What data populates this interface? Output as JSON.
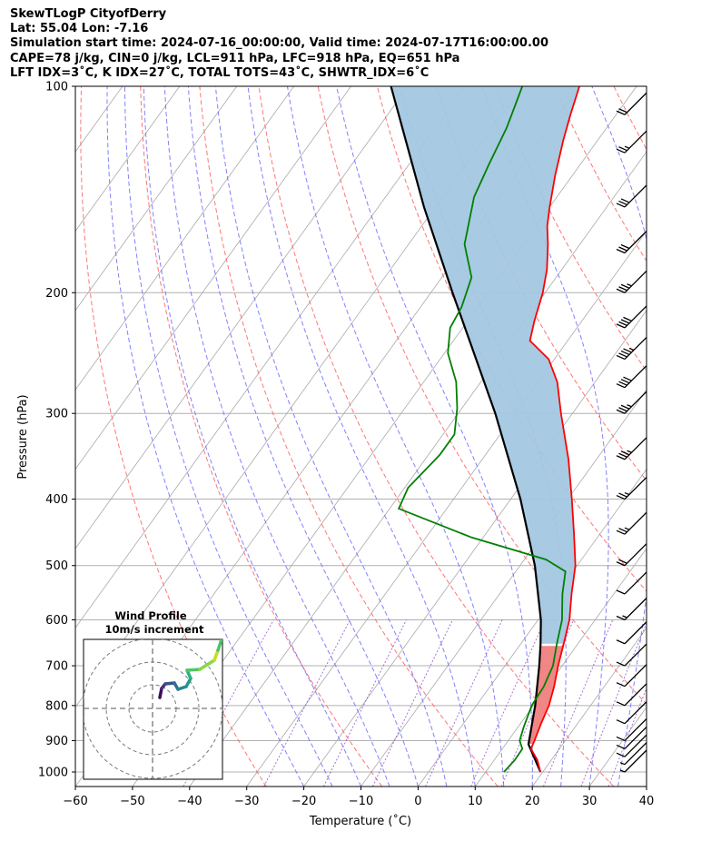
{
  "header": {
    "line1": "SkewTLogP CityofDerry",
    "line2": "Lat: 55.04   Lon: -7.16",
    "line3": "Simulation start time: 2024-07-16_00:00:00, Valid time: 2024-07-17T16:00:00.00",
    "line4": "CAPE=78 j/kg, CIN=0 j/kg, LCL=911 hPa, LFC=918 hPa, EQ=651 hPa",
    "line5": "LFT IDX=3˚C, K IDX=27˚C, TOTAL TOTS=43˚C, SHWTR_IDX=6˚C"
  },
  "chart_data": {
    "type": "line",
    "subtype": "skew-t log-p sounding",
    "xlabel": "Temperature (˚C)",
    "ylabel": "Pressure (hPa)",
    "x_ticks": [
      "−60",
      "−50",
      "−40",
      "−30",
      "−20",
      "−10",
      "0",
      "10",
      "20",
      "30",
      "40"
    ],
    "y_ticks": [
      "100",
      "200",
      "300",
      "400",
      "500",
      "600",
      "700",
      "800",
      "900",
      "1000"
    ],
    "xlim": [
      -60,
      40
    ],
    "ylim": [
      1050,
      100
    ],
    "y_scale": "log",
    "skewed_isotherms": true,
    "colors": {
      "temperature": "#ff0000",
      "dewpoint": "#008000",
      "parcel": "#000000",
      "cape_fill": "#a3c7e0",
      "cin_fill": "#f08080",
      "dry_adiabats": "#ff6666",
      "moist_adiabats": "#6b6bff",
      "mixing_ratio": "#8b3fc6",
      "isotherms": "#a9a9a9"
    },
    "series": [
      {
        "key": "temperature",
        "points": [
          [
            1000,
            19.6
          ],
          [
            960,
            17.5
          ],
          [
            925,
            15.0
          ],
          [
            900,
            14.6
          ],
          [
            850,
            13.6
          ],
          [
            800,
            12.7
          ],
          [
            750,
            11.2
          ],
          [
            700,
            9.3
          ],
          [
            650,
            7.5
          ],
          [
            600,
            5.5
          ],
          [
            550,
            2.6
          ],
          [
            500,
            -0.3
          ],
          [
            450,
            -4.5
          ],
          [
            400,
            -9.3
          ],
          [
            350,
            -14.9
          ],
          [
            300,
            -22.0
          ],
          [
            270,
            -26.6
          ],
          [
            250,
            -31.0
          ],
          [
            235,
            -36.6
          ],
          [
            220,
            -38.3
          ],
          [
            200,
            -40.4
          ],
          [
            185,
            -42.6
          ],
          [
            170,
            -45.6
          ],
          [
            160,
            -48.0
          ],
          [
            150,
            -50.0
          ],
          [
            135,
            -53.0
          ],
          [
            120,
            -56.0
          ],
          [
            110,
            -58.0
          ],
          [
            100,
            -60.0
          ]
        ]
      },
      {
        "key": "dewpoint",
        "points": [
          [
            1000,
            13.2
          ],
          [
            960,
            13.6
          ],
          [
            925,
            13.5
          ],
          [
            900,
            12.0
          ],
          [
            860,
            11.0
          ],
          [
            800,
            9.7
          ],
          [
            750,
            9.4
          ],
          [
            700,
            8.4
          ],
          [
            650,
            6.3
          ],
          [
            600,
            4.2
          ],
          [
            550,
            1.0
          ],
          [
            510,
            -1.3
          ],
          [
            490,
            -6.2
          ],
          [
            455,
            -22.0
          ],
          [
            413,
            -38.4
          ],
          [
            385,
            -39.4
          ],
          [
            345,
            -38.0
          ],
          [
            322,
            -38.0
          ],
          [
            295,
            -40.8
          ],
          [
            270,
            -44.3
          ],
          [
            245,
            -49.4
          ],
          [
            225,
            -52.2
          ],
          [
            210,
            -52.8
          ],
          [
            190,
            -54.8
          ],
          [
            170,
            -60.2
          ],
          [
            145,
            -64.5
          ],
          [
            130,
            -66.0
          ],
          [
            115,
            -67.5
          ],
          [
            100,
            -70.0
          ]
        ]
      },
      {
        "key": "parcel",
        "points": [
          [
            1000,
            19.6
          ],
          [
            911,
            14.0
          ],
          [
            800,
            10.3
          ],
          [
            700,
            6.0
          ],
          [
            651,
            3.5
          ],
          [
            600,
            0.5
          ],
          [
            500,
            -7.4
          ],
          [
            400,
            -18.3
          ],
          [
            300,
            -33.5
          ],
          [
            250,
            -43.7
          ],
          [
            200,
            -56.2
          ],
          [
            150,
            -72.0
          ],
          [
            100,
            -93.0
          ]
        ]
      }
    ],
    "wind_barbs": [
      {
        "p": 1000,
        "speed": 5
      },
      {
        "p": 975,
        "speed": 5
      },
      {
        "p": 950,
        "speed": 10
      },
      {
        "p": 925,
        "speed": 10
      },
      {
        "p": 900,
        "speed": 10
      },
      {
        "p": 850,
        "speed": 10
      },
      {
        "p": 800,
        "speed": 10
      },
      {
        "p": 750,
        "speed": 10
      },
      {
        "p": 700,
        "speed": 10
      },
      {
        "p": 650,
        "speed": 10
      },
      {
        "p": 600,
        "speed": 15
      },
      {
        "p": 550,
        "speed": 10
      },
      {
        "p": 500,
        "speed": 20
      },
      {
        "p": 450,
        "speed": 25
      },
      {
        "p": 400,
        "speed": 25
      },
      {
        "p": 350,
        "speed": 35
      },
      {
        "p": 300,
        "speed": 35
      },
      {
        "p": 275,
        "speed": 40
      },
      {
        "p": 250,
        "speed": 45
      },
      {
        "p": 225,
        "speed": 40
      },
      {
        "p": 200,
        "speed": 35
      },
      {
        "p": 175,
        "speed": 30
      },
      {
        "p": 150,
        "speed": 30
      },
      {
        "p": 125,
        "speed": 25
      },
      {
        "p": 110,
        "speed": 20
      }
    ],
    "hodograph": {
      "title": "Wind Profile",
      "subtitle": "10m/s increment",
      "rings": 3
    }
  }
}
